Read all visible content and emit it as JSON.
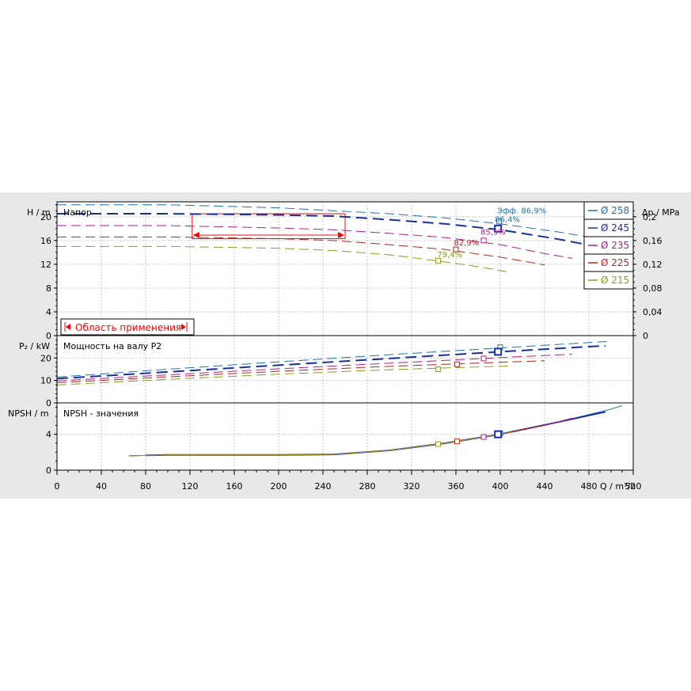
{
  "chart_data": {
    "type": "line",
    "x_axis": {
      "label": "Q / m³/h",
      "range": [
        0,
        520
      ],
      "ticks": [
        "0",
        "40",
        "80",
        "120",
        "160",
        "200",
        "240",
        "280",
        "320",
        "360",
        "400",
        "440",
        "480",
        "520"
      ]
    },
    "legend": {
      "placement": "top-right",
      "entries": [
        {
          "label": "Ø 258",
          "color": "#1e70b0"
        },
        {
          "label": "Ø 245",
          "color": "#1a2f9e"
        },
        {
          "label": "Ø 235",
          "color": "#a8218e"
        },
        {
          "label": "Ø 225",
          "color": "#b6261e"
        },
        {
          "label": "Ø 215",
          "color": "#8e9b1e"
        }
      ]
    },
    "panels": {
      "head": {
        "title": "Напор",
        "ylabel": "H / m",
        "ylim": [
          0,
          22.5
        ],
        "yticks": [
          "0",
          "4",
          "8",
          "12",
          "16",
          "20"
        ],
        "y2label": "Δp / MPa",
        "y2ticks": [
          "0",
          "0,04",
          "0,08",
          "0,12",
          "0,16",
          "0,2"
        ],
        "series": [
          {
            "name": "Ø 258",
            "color": "#1e70b0",
            "x": [
              0,
              100,
              200,
              300,
              350,
              400,
              450,
              500,
              510
            ],
            "y": [
              22.0,
              22.0,
              21.5,
              20.5,
              19.8,
              18.8,
              17.5,
              16.0,
              15.6
            ]
          },
          {
            "name": "Ø 245",
            "color": "#1a2f9e",
            "x": [
              0,
              100,
              200,
              250,
              300,
              350,
              400,
              450,
              495
            ],
            "y": [
              20.5,
              20.5,
              20.3,
              20.1,
              19.5,
              18.8,
              17.8,
              16.3,
              14.7
            ]
          },
          {
            "name": "Ø 235",
            "color": "#a8218e",
            "x": [
              0,
              100,
              200,
              250,
              300,
              350,
              400,
              440,
              465
            ],
            "y": [
              18.5,
              18.5,
              18.1,
              17.8,
              17.2,
              16.5,
              15.3,
              13.8,
              13.0
            ]
          },
          {
            "name": "Ø 225",
            "color": "#b6261e",
            "x": [
              0,
              100,
              200,
              250,
              300,
              350,
              400,
              440
            ],
            "y": [
              16.6,
              16.6,
              16.3,
              16.0,
              15.3,
              14.5,
              13.2,
              11.9
            ]
          },
          {
            "name": "Ø 215",
            "color": "#8e9b1e",
            "x": [
              0,
              100,
              200,
              250,
              300,
              350,
              380,
              410
            ],
            "y": [
              15.0,
              15.0,
              14.7,
              14.3,
              13.6,
              12.4,
              11.6,
              10.6
            ]
          }
        ],
        "operating_points": [
          {
            "series": "Ø 258",
            "x": 399,
            "y": 19.2
          },
          {
            "series": "Ø 245",
            "x": 398,
            "y": 18.0
          },
          {
            "series": "Ø 235",
            "x": 385,
            "y": 16.0
          },
          {
            "series": "Ø 225",
            "x": 360,
            "y": 14.5
          },
          {
            "series": "Ø 215",
            "x": 344,
            "y": 12.6
          }
        ],
        "annotations": [
          {
            "text": "Эфф.  86,9%",
            "x": 400,
            "y": 20.6,
            "color": "#1e70b0"
          },
          {
            "text": "86,4%",
            "x": 398,
            "y": 19.1,
            "color": "#1e70b0"
          },
          {
            "text": "85,5%",
            "x": 385,
            "y": 17.0,
            "color": "#a8218e"
          },
          {
            "text": "82,9%",
            "x": 361,
            "y": 15.2,
            "color": "#b6261e"
          },
          {
            "text": "79,4%",
            "x": 346,
            "y": 13.2,
            "color": "#8e9b1e"
          }
        ],
        "application_range": {
          "label": "Область применения",
          "x": [
            122,
            260
          ],
          "y": [
            16.3,
            20.5
          ]
        }
      },
      "power": {
        "title": "Мощность на валу P2",
        "ylabel": "P₂ / kW",
        "ylim": [
          0,
          30
        ],
        "yticks": [
          "0",
          "10",
          "20"
        ],
        "series": [
          {
            "name": "Ø 258",
            "color": "#1e70b0",
            "x": [
              0,
              100,
              200,
              300,
              400,
              500
            ],
            "y": [
              11.5,
              15.0,
              18.3,
              21.5,
              24.5,
              27.5
            ]
          },
          {
            "name": "Ø 245",
            "color": "#1a2f9e",
            "x": [
              0,
              100,
              200,
              300,
              400,
              495
            ],
            "y": [
              10.8,
              13.8,
              16.8,
              19.8,
              22.8,
              25.5
            ]
          },
          {
            "name": "Ø 235",
            "color": "#a8218e",
            "x": [
              0,
              100,
              200,
              300,
              400,
              465
            ],
            "y": [
              9.8,
              12.5,
              15.2,
              17.7,
              20.2,
              21.7
            ]
          },
          {
            "name": "Ø 225",
            "color": "#b6261e",
            "x": [
              0,
              100,
              200,
              300,
              400,
              440
            ],
            "y": [
              9.0,
              11.6,
              14.1,
              16.3,
              18.1,
              18.8
            ]
          },
          {
            "name": "Ø 215",
            "color": "#8e9b1e",
            "x": [
              0,
              100,
              200,
              300,
              410
            ],
            "y": [
              8.0,
              10.5,
              12.8,
              14.8,
              16.5
            ]
          }
        ],
        "operating_points": [
          {
            "series": "Ø 258",
            "x": 400,
            "y": 24.8
          },
          {
            "series": "Ø 245",
            "x": 398,
            "y": 22.8
          },
          {
            "series": "Ø 235",
            "x": 385,
            "y": 19.8
          },
          {
            "series": "Ø 225",
            "x": 361,
            "y": 17.2
          },
          {
            "series": "Ø 215",
            "x": 344,
            "y": 15.0
          }
        ]
      },
      "npsh": {
        "title": "NPSH - значения",
        "ylabel": "NPSH / m",
        "ylim": [
          0,
          7.5
        ],
        "yticks": [
          "0",
          "4"
        ],
        "series": [
          {
            "name": "Ø 258",
            "color": "#1e70b0",
            "x": [
              65,
              100,
              200,
              250,
              300,
              350,
              400,
              450,
              500,
              510
            ],
            "y": [
              1.6,
              1.7,
              1.7,
              1.75,
              2.2,
              3.0,
              4.0,
              5.3,
              6.8,
              7.2
            ]
          },
          {
            "name": "Ø 245",
            "color": "#1a2f9e",
            "x": [
              80,
              100,
              200,
              250,
              300,
              350,
              400,
              450,
              495
            ],
            "y": [
              1.65,
              1.7,
              1.7,
              1.75,
              2.2,
              3.0,
              4.0,
              5.3,
              6.5
            ]
          },
          {
            "name": "Ø 235",
            "color": "#a8218e",
            "x": [
              65,
              100,
              200,
              250,
              300,
              350,
              400,
              440,
              465
            ],
            "y": [
              1.6,
              1.7,
              1.7,
              1.75,
              2.2,
              3.0,
              4.0,
              5.0,
              5.8
            ]
          },
          {
            "name": "Ø 225",
            "color": "#b6261e",
            "x": [
              65,
              100,
              200,
              250,
              300,
              350,
              400,
              440
            ],
            "y": [
              1.6,
              1.7,
              1.7,
              1.75,
              2.2,
              3.0,
              4.0,
              5.0
            ]
          },
          {
            "name": "Ø 215",
            "color": "#8e9b1e",
            "x": [
              65,
              100,
              200,
              250,
              300,
              350,
              410
            ],
            "y": [
              1.6,
              1.7,
              1.7,
              1.75,
              2.2,
              3.0,
              4.2
            ]
          }
        ],
        "operating_points": [
          {
            "series": "Ø 258",
            "x": 400,
            "y": 4.1
          },
          {
            "series": "Ø 245",
            "x": 398,
            "y": 4.0
          },
          {
            "series": "Ø 235",
            "x": 385,
            "y": 3.7
          },
          {
            "series": "Ø 225",
            "x": 361,
            "y": 3.2
          },
          {
            "series": "Ø 215",
            "x": 344,
            "y": 2.9
          }
        ]
      }
    }
  }
}
